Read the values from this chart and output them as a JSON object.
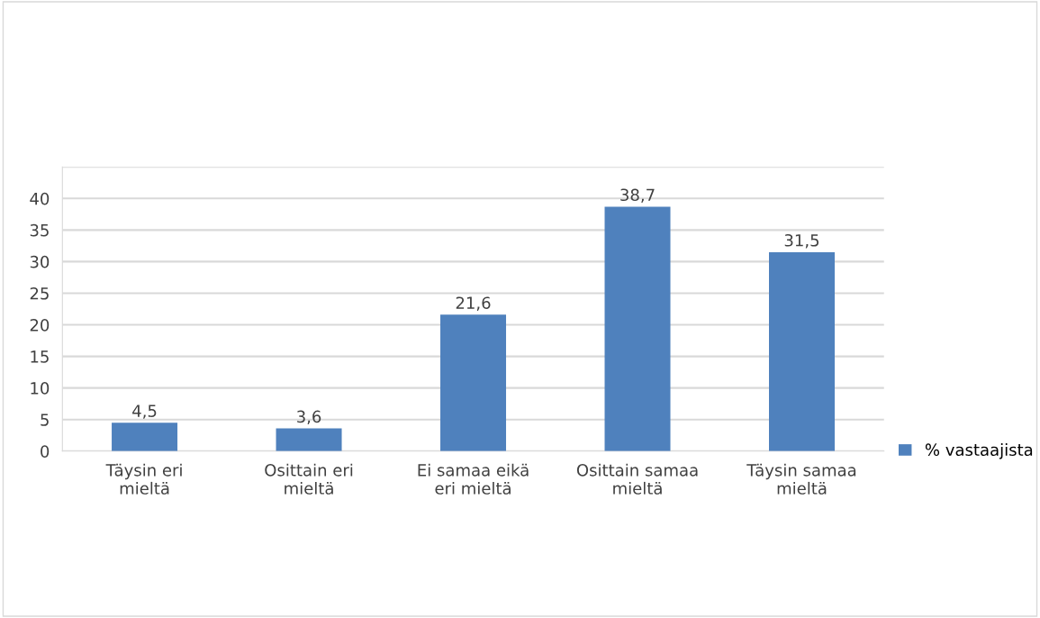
{
  "chart_data": {
    "type": "bar",
    "categories": [
      "Täysin eri\nmieltä",
      "Osittain eri\nmieltä",
      "Ei samaa eikä\neri mieltä",
      "Osittain samaa\nmieltä",
      "Täysin samaa\nmieltä"
    ],
    "series": [
      {
        "name": "% vastaajista",
        "color": "#4f81bd",
        "values": [
          4.5,
          3.6,
          21.6,
          38.7,
          31.5
        ],
        "value_labels": [
          "4,5",
          "3,6",
          "21,6",
          "38,7",
          "31,5"
        ]
      }
    ],
    "ylim": [
      0,
      45
    ],
    "yticks": [
      0,
      5,
      10,
      15,
      20,
      25,
      30,
      35,
      40,
      {
        "value": 45,
        "label": null
      }
    ],
    "grid": "y",
    "legend": "right"
  }
}
